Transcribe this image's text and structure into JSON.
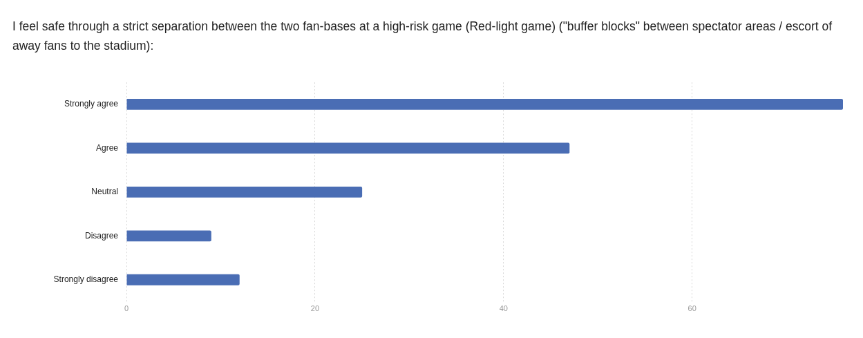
{
  "chart_data": {
    "type": "bar",
    "orientation": "horizontal",
    "title": "I feel safe through a strict separation between the two fan-bases at a high-risk game (Red-light game) (\"buffer blocks\" between spectator areas / escort of away fans to the stadium):",
    "categories": [
      "Strongly agree",
      "Agree",
      "Neutral",
      "Disagree",
      "Strongly disagree"
    ],
    "values": [
      76,
      47,
      25,
      9,
      12
    ],
    "color": "#4a6db4",
    "xlim": [
      0,
      76
    ],
    "xticks": [
      0,
      20,
      40,
      60
    ],
    "grid": "x"
  }
}
